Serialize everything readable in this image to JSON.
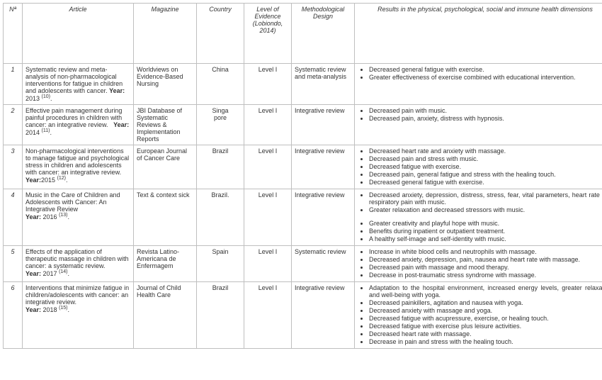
{
  "headers": {
    "n": "Nª",
    "article": "Article",
    "magazine": "Magazine",
    "country": "Country",
    "level": "Level of Evidence (Lobiondo, 2014)",
    "design": "Methodological Design",
    "results": "Results in the physical, psychological, social and immune health dimensions"
  },
  "rows": [
    {
      "n": "1",
      "article": "Systematic review and meta-analysis of non-pharmacological interventions for fatigue in children and adolescents with cancer. <b>Year:</b> 2013 <span class='sup'>(10)</span>.",
      "magazine": "Worldviews on Evidence-Based Nursing",
      "country": "China",
      "level": "Level I",
      "design": "Systematic review and meta-analysis",
      "results": [
        "Decreased general fatigue with exercise.",
        "Greater effectiveness of exercise combined with educational intervention."
      ]
    },
    {
      "n": "2",
      "article": "Effective pain management during painful procedures in children with cancer: an integrative review.&nbsp;&nbsp; <b>Year:</b> 2014 <span class='sup'>(11)</span>.",
      "magazine": "JBI Database of Systematic Reviews & Implementation Reports",
      "country": "Singa<br>pore",
      "level": "Level I",
      "design": "Integrative review",
      "results": [
        "Decreased pain with music.",
        "Decreased pain, anxiety, distress with hypnosis."
      ]
    },
    {
      "n": "3",
      "article": "Non-pharmacological interventions to manage fatigue and psychological stress in children and adolescents with cancer: an integrative review. <b>Year:</b>2015 <span class='sup'>(12)</span>.",
      "magazine": "European Journal of Cancer Care",
      "country": "Brazil",
      "level": "Level I",
      "design": "Integrative review",
      "results": [
        "Decreased heart rate and anxiety with massage.",
        "Decreased pain and stress with music.",
        "Decreased fatigue with exercise.",
        "Decreased pain, general fatigue and stress with the healing touch.",
        "Decreased general fatigue with exercise."
      ]
    },
    {
      "n": "4",
      "article": "Music in the Care of Children and Adolescents with Cancer: An Integrative Review<br><b>Year:</b> 2016 <span class='sup'>(13)</span>.",
      "magazine": "Text & context sick",
      "country": "Brazil.",
      "level": "Level I",
      "design": "Integrative review",
      "results": [
        "Decreased anxiety, depression, distress, stress, fear, vital parameters, heart rate and respiratory pain with music.",
        "Greater relaxation and decreased stressors with music.",
        "<br>",
        "Greater creativity and playful hope with music.",
        "Benefits during inpatient or outpatient treatment.",
        "A healthy self-image and self-identity with music."
      ]
    },
    {
      "n": "5",
      "article": "Effects of the application of therapeutic massage in children with cancer: a systematic review.<br><b>Year:</b> 2017 <span class='sup'>(14)</span>.",
      "magazine": "Revista Latino-Americana de Enfermagem",
      "country": "Spain",
      "level": "Level I",
      "design": "Systematic review",
      "results": [
        "Increase in white blood cells and neutrophils with massage.",
        "Decreased anxiety, depression, pain, nausea and heart rate with massage.",
        "Decreased pain with massage and mood therapy.",
        "Decrease in post-traumatic stress syndrome with massage."
      ]
    },
    {
      "n": "6",
      "article": "Interventions that minimize fatigue in children/adolescents with cancer: an integrative review.<br><b>Year:</b> 2018 <span class='sup'>(15)</span>.",
      "magazine": "Journal of Child Health Care",
      "country": "Brazil",
      "level": "Level I",
      "design": "Integrative review",
      "results": [
        "Adaptation to the hospital environment, increased energy levels, greater relaxation and well-being with yoga.",
        "Decreased painkillers, agitation and nausea with yoga.",
        "Decreased anxiety with massage and yoga.",
        "Decreased fatigue with acupressure, exercise, or healing touch.",
        "Decreased fatigue with exercise plus leisure activities.",
        "Decreased heart rate with massage.",
        "Decrease in pain and stress with the healing touch."
      ]
    }
  ]
}
